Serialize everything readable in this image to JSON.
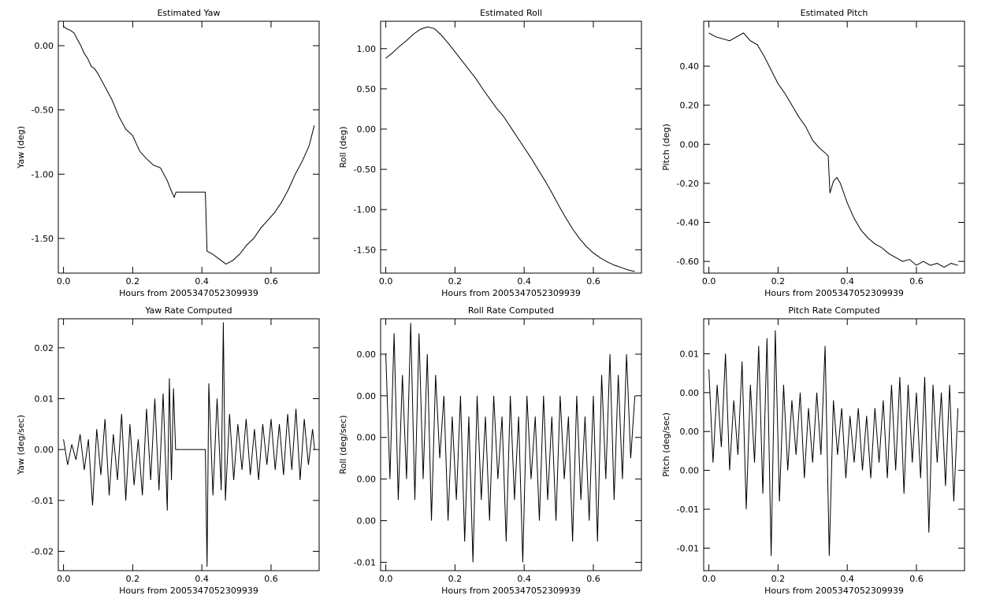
{
  "chart_data": [
    {
      "type": "line",
      "title": "Estimated Yaw",
      "xlabel": "Hours from 2005347052309939",
      "ylabel": "Yaw (deg)",
      "color": "#000000",
      "x": [
        0,
        0.01,
        0.02,
        0.03,
        0.04,
        0.05,
        0.06,
        0.07,
        0.08,
        0.09,
        0.1,
        0.12,
        0.14,
        0.16,
        0.18,
        0.2,
        0.22,
        0.24,
        0.26,
        0.28,
        0.3,
        0.31,
        0.32,
        0.325,
        0.41,
        0.415,
        0.43,
        0.45,
        0.47,
        0.49,
        0.51,
        0.53,
        0.55,
        0.57,
        0.59,
        0.61,
        0.63,
        0.65,
        0.67,
        0.69,
        0.71,
        0.725
      ],
      "values": [
        0.15,
        0.13,
        0.12,
        0.1,
        0.05,
        0.0,
        -0.06,
        -0.1,
        -0.16,
        -0.18,
        -0.22,
        -0.32,
        -0.42,
        -0.55,
        -0.65,
        -0.7,
        -0.82,
        -0.88,
        -0.93,
        -0.95,
        -1.05,
        -1.12,
        -1.18,
        -1.14,
        -1.14,
        -1.6,
        -1.62,
        -1.66,
        -1.7,
        -1.67,
        -1.62,
        -1.55,
        -1.5,
        -1.42,
        -1.36,
        -1.3,
        -1.22,
        -1.12,
        -1.0,
        -0.9,
        -0.78,
        -0.62
      ],
      "xlim": [
        -0.015,
        0.739
      ],
      "ylim": [
        -1.77,
        0.19
      ],
      "xticks": [
        {
          "value": 0,
          "label": "0.0"
        },
        0.2,
        0.4,
        0.6
      ],
      "yticks": [
        {
          "value": 0,
          "label": "0.00"
        },
        {
          "value": -0.5,
          "label": "-0.50"
        },
        {
          "value": -1,
          "label": "-1.00"
        },
        {
          "value": -1.5,
          "label": "-1.50"
        }
      ]
    },
    {
      "type": "line",
      "title": "Estimated Roll",
      "xlabel": "Hours from 2005347052309939",
      "ylabel": "Roll (deg)",
      "color": "#000000",
      "x": [
        0,
        0.02,
        0.04,
        0.06,
        0.08,
        0.1,
        0.12,
        0.14,
        0.16,
        0.18,
        0.2,
        0.22,
        0.24,
        0.26,
        0.28,
        0.3,
        0.32,
        0.34,
        0.36,
        0.38,
        0.4,
        0.42,
        0.44,
        0.46,
        0.48,
        0.5,
        0.52,
        0.54,
        0.56,
        0.58,
        0.6,
        0.62,
        0.64,
        0.66,
        0.68,
        0.7,
        0.72
      ],
      "values": [
        0.88,
        0.95,
        1.03,
        1.1,
        1.18,
        1.24,
        1.27,
        1.25,
        1.17,
        1.07,
        0.96,
        0.85,
        0.74,
        0.63,
        0.5,
        0.38,
        0.26,
        0.16,
        0.03,
        -0.1,
        -0.23,
        -0.36,
        -0.5,
        -0.64,
        -0.79,
        -0.95,
        -1.1,
        -1.24,
        -1.36,
        -1.46,
        -1.54,
        -1.6,
        -1.65,
        -1.69,
        -1.72,
        -1.75,
        -1.77
      ],
      "xlim": [
        -0.015,
        0.739
      ],
      "ylim": [
        -1.79,
        1.34
      ],
      "xticks": [
        {
          "value": 0,
          "label": "0.0"
        },
        0.2,
        0.4,
        0.6
      ],
      "yticks": [
        {
          "value": 1,
          "label": "1.00"
        },
        {
          "value": 0.5,
          "label": "0.50"
        },
        {
          "value": 0,
          "label": "0.00"
        },
        {
          "value": -0.5,
          "label": "-0.50"
        },
        {
          "value": -1,
          "label": "-1.00"
        },
        {
          "value": -1.5,
          "label": "-1.50"
        }
      ]
    },
    {
      "type": "line",
      "title": "Estimated Pitch",
      "xlabel": "Hours from 2005347052309939",
      "ylabel": "Pitch (deg)",
      "color": "#000000",
      "x": [
        0,
        0.02,
        0.04,
        0.06,
        0.08,
        0.1,
        0.12,
        0.14,
        0.16,
        0.18,
        0.2,
        0.22,
        0.24,
        0.26,
        0.28,
        0.3,
        0.32,
        0.34,
        0.345,
        0.35,
        0.36,
        0.37,
        0.38,
        0.4,
        0.42,
        0.44,
        0.46,
        0.48,
        0.5,
        0.52,
        0.54,
        0.56,
        0.58,
        0.6,
        0.62,
        0.64,
        0.66,
        0.68,
        0.7,
        0.72
      ],
      "values": [
        0.57,
        0.55,
        0.54,
        0.53,
        0.55,
        0.57,
        0.53,
        0.51,
        0.45,
        0.38,
        0.31,
        0.26,
        0.2,
        0.14,
        0.09,
        0.02,
        -0.02,
        -0.05,
        -0.06,
        -0.25,
        -0.19,
        -0.17,
        -0.2,
        -0.3,
        -0.38,
        -0.44,
        -0.48,
        -0.51,
        -0.53,
        -0.56,
        -0.58,
        -0.6,
        -0.59,
        -0.62,
        -0.6,
        -0.62,
        -0.61,
        -0.63,
        -0.61,
        -0.62
      ],
      "xlim": [
        -0.015,
        0.739
      ],
      "ylim": [
        -0.66,
        0.63
      ],
      "xticks": [
        {
          "value": 0,
          "label": "0.0"
        },
        0.2,
        0.4,
        0.6
      ],
      "yticks": [
        {
          "value": 0.4,
          "label": "0.40"
        },
        {
          "value": 0.2,
          "label": "0.20"
        },
        {
          "value": 0,
          "label": "0.00"
        },
        {
          "value": -0.2,
          "label": "-0.20"
        },
        {
          "value": -0.4,
          "label": "-0.40"
        },
        {
          "value": -0.6,
          "label": "-0.60"
        }
      ]
    },
    {
      "type": "line",
      "title": "Yaw Rate Computed",
      "xlabel": "Hours from 2005347052309939",
      "ylabel": "Yaw (deg/sec)",
      "color": "#000000",
      "x": [
        0,
        0.012,
        0.024,
        0.036,
        0.048,
        0.06,
        0.072,
        0.084,
        0.096,
        0.108,
        0.12,
        0.132,
        0.144,
        0.156,
        0.168,
        0.18,
        0.192,
        0.204,
        0.216,
        0.228,
        0.24,
        0.252,
        0.264,
        0.276,
        0.288,
        0.3,
        0.306,
        0.312,
        0.318,
        0.324,
        0.41,
        0.415,
        0.42,
        0.432,
        0.444,
        0.456,
        0.462,
        0.468,
        0.48,
        0.492,
        0.504,
        0.516,
        0.528,
        0.54,
        0.552,
        0.564,
        0.576,
        0.588,
        0.6,
        0.612,
        0.624,
        0.636,
        0.648,
        0.66,
        0.672,
        0.684,
        0.696,
        0.708,
        0.72,
        0.726
      ],
      "values": [
        0.002,
        -0.003,
        0.001,
        -0.002,
        0.003,
        -0.004,
        0.002,
        -0.011,
        0.004,
        -0.005,
        0.006,
        -0.009,
        0.003,
        -0.006,
        0.007,
        -0.01,
        0.005,
        -0.007,
        0.002,
        -0.009,
        0.008,
        -0.006,
        0.01,
        -0.008,
        0.011,
        -0.012,
        0.014,
        -0.006,
        0.012,
        0.0,
        0.0,
        -0.023,
        0.013,
        -0.009,
        0.01,
        -0.008,
        0.025,
        -0.01,
        0.007,
        -0.006,
        0.005,
        -0.004,
        0.006,
        -0.005,
        0.004,
        -0.006,
        0.005,
        -0.003,
        0.006,
        -0.004,
        0.005,
        -0.005,
        0.007,
        -0.004,
        0.008,
        -0.006,
        0.006,
        -0.003,
        0.004,
        0.0
      ],
      "xlim": [
        -0.015,
        0.739
      ],
      "ylim": [
        -0.0238,
        0.0257
      ],
      "xticks": [
        {
          "value": 0,
          "label": "0.0"
        },
        0.2,
        0.4,
        0.6
      ],
      "yticks": [
        0.02,
        0.01,
        {
          "value": 0,
          "label": "0.00"
        },
        -0.01,
        -0.02
      ]
    },
    {
      "type": "line",
      "title": "Roll Rate Computed",
      "xlabel": "Hours from 2005347052309939",
      "ylabel": "Roll (deg/sec)",
      "color": "#000000",
      "x": [
        0,
        0.012,
        0.024,
        0.036,
        0.048,
        0.06,
        0.072,
        0.084,
        0.096,
        0.108,
        0.12,
        0.132,
        0.144,
        0.156,
        0.168,
        0.18,
        0.192,
        0.204,
        0.216,
        0.228,
        0.24,
        0.252,
        0.264,
        0.276,
        0.288,
        0.3,
        0.312,
        0.324,
        0.336,
        0.348,
        0.36,
        0.372,
        0.384,
        0.396,
        0.408,
        0.42,
        0.432,
        0.444,
        0.456,
        0.468,
        0.48,
        0.492,
        0.504,
        0.516,
        0.528,
        0.54,
        0.552,
        0.564,
        0.576,
        0.588,
        0.6,
        0.612,
        0.624,
        0.636,
        0.648,
        0.66,
        0.672,
        0.684,
        0.696,
        0.708,
        0.72
      ],
      "values": [
        0.004,
        -0.002,
        0.005,
        -0.003,
        0.003,
        -0.002,
        0.0055,
        -0.003,
        0.005,
        -0.002,
        0.004,
        -0.004,
        0.003,
        -0.001,
        0.002,
        -0.004,
        0.001,
        -0.003,
        0.002,
        -0.005,
        0.001,
        -0.006,
        0.002,
        -0.003,
        0.001,
        -0.004,
        0.002,
        -0.002,
        0.001,
        -0.005,
        0.002,
        -0.003,
        0.001,
        -0.006,
        0.002,
        -0.002,
        0.001,
        -0.004,
        0.002,
        -0.003,
        0.001,
        -0.004,
        0.002,
        -0.002,
        0.001,
        -0.005,
        0.002,
        -0.003,
        0.001,
        -0.004,
        0.002,
        -0.005,
        0.003,
        -0.002,
        0.004,
        -0.003,
        0.003,
        -0.002,
        0.004,
        -0.001,
        0.002
      ],
      "xlim": [
        -0.015,
        0.739
      ],
      "ylim": [
        -0.0064,
        0.0057
      ],
      "xticks": [
        {
          "value": 0,
          "label": "0.0"
        },
        0.2,
        0.4,
        0.6
      ],
      "yticks": [
        {
          "value": 0.004,
          "label": "0.00"
        },
        {
          "value": 0.002,
          "label": "0.00"
        },
        {
          "value": 0,
          "label": "0.00"
        },
        {
          "value": -0.002,
          "label": "0.00"
        },
        {
          "value": -0.004,
          "label": "0.00"
        },
        {
          "value": -0.006,
          "label": "-0.01"
        }
      ]
    },
    {
      "type": "line",
      "title": "Pitch Rate Computed",
      "xlabel": "Hours from 2005347052309939",
      "ylabel": "Pitch (deg/sec)",
      "color": "#000000",
      "x": [
        0,
        0.012,
        0.024,
        0.036,
        0.048,
        0.06,
        0.072,
        0.084,
        0.096,
        0.108,
        0.12,
        0.132,
        0.144,
        0.156,
        0.168,
        0.18,
        0.192,
        0.204,
        0.216,
        0.228,
        0.24,
        0.252,
        0.264,
        0.276,
        0.288,
        0.3,
        0.312,
        0.324,
        0.336,
        0.348,
        0.36,
        0.372,
        0.384,
        0.396,
        0.408,
        0.42,
        0.432,
        0.444,
        0.456,
        0.468,
        0.48,
        0.492,
        0.504,
        0.516,
        0.528,
        0.54,
        0.552,
        0.564,
        0.576,
        0.588,
        0.6,
        0.612,
        0.624,
        0.636,
        0.648,
        0.66,
        0.672,
        0.684,
        0.696,
        0.708,
        0.72
      ],
      "values": [
        0.008,
        -0.004,
        0.006,
        -0.002,
        0.01,
        -0.005,
        0.004,
        -0.003,
        0.009,
        -0.01,
        0.006,
        -0.004,
        0.011,
        -0.008,
        0.012,
        -0.016,
        0.013,
        -0.009,
        0.006,
        -0.005,
        0.004,
        -0.003,
        0.005,
        -0.006,
        0.003,
        -0.004,
        0.005,
        -0.003,
        0.011,
        -0.016,
        0.004,
        -0.003,
        0.003,
        -0.006,
        0.002,
        -0.004,
        0.003,
        -0.005,
        0.002,
        -0.006,
        0.003,
        -0.004,
        0.004,
        -0.006,
        0.006,
        -0.005,
        0.007,
        -0.008,
        0.006,
        -0.004,
        0.005,
        -0.006,
        0.007,
        -0.013,
        0.006,
        -0.004,
        0.005,
        -0.007,
        0.006,
        -0.009,
        0.003
      ],
      "xlim": [
        -0.015,
        0.739
      ],
      "ylim": [
        -0.0179,
        0.0145
      ],
      "xticks": [
        {
          "value": 0,
          "label": "0.0"
        },
        0.2,
        0.4,
        0.6
      ],
      "yticks": [
        {
          "value": 0.01,
          "label": "0.01"
        },
        {
          "value": 0.005,
          "label": "0.00"
        },
        {
          "value": 0,
          "label": "0.00"
        },
        {
          "value": -0.005,
          "label": "0.00"
        },
        {
          "value": -0.01,
          "label": "-0.01"
        },
        {
          "value": -0.015,
          "label": "-0.01"
        }
      ]
    }
  ]
}
